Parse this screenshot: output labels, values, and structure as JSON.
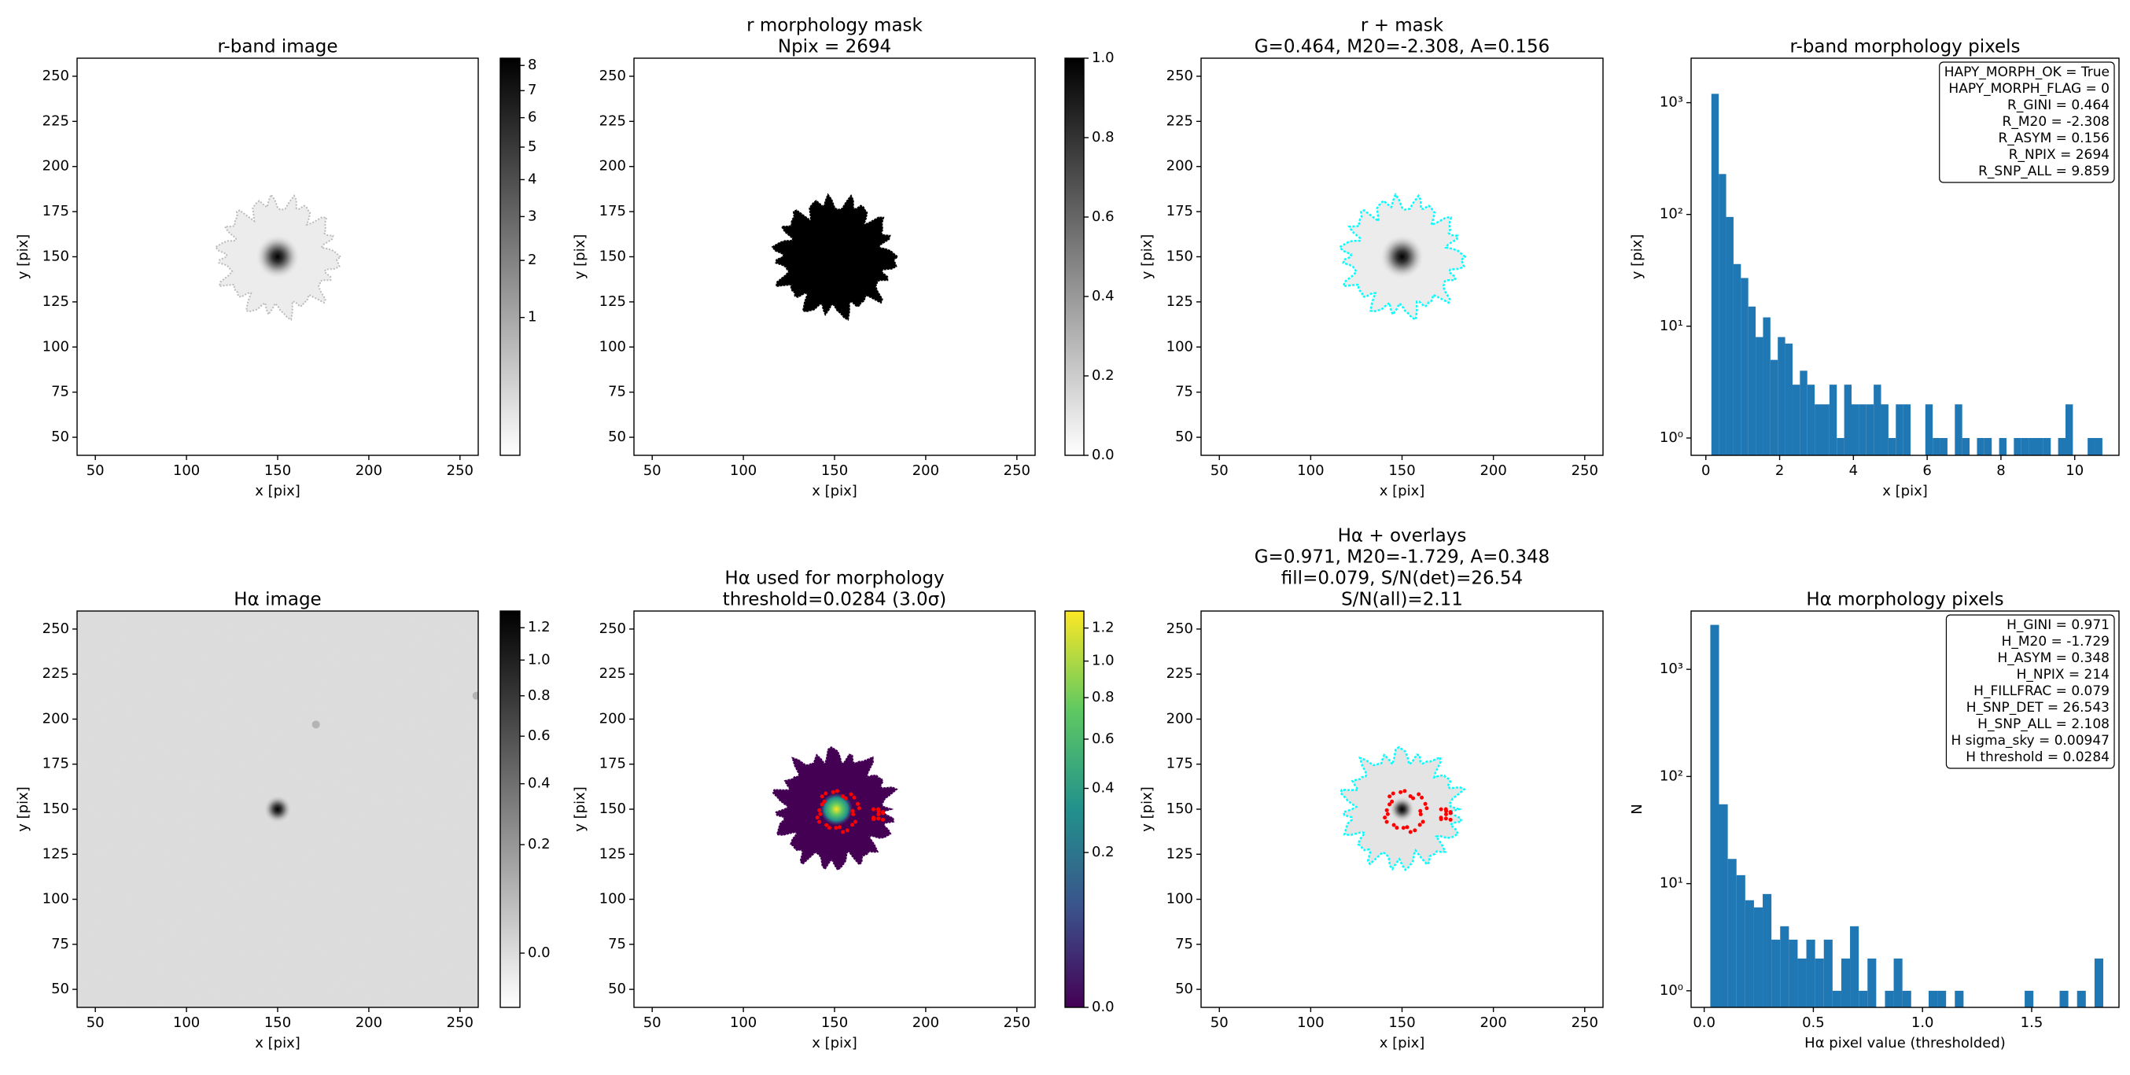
{
  "chart_data": [
    {
      "type": "image",
      "title": [
        "r-band image"
      ],
      "xlabel": "x [pix]",
      "ylabel": "y [pix]",
      "xlim": [
        40,
        260
      ],
      "ylim": [
        40,
        260
      ],
      "xticks": [
        50,
        100,
        150,
        200,
        250
      ],
      "yticks": [
        50,
        75,
        100,
        125,
        150,
        175,
        200,
        225,
        250
      ],
      "colorbar": {
        "colormap": "gray_r",
        "scale": "sqrt",
        "lim": [
          0,
          8.3
        ],
        "ticks": [
          1,
          2,
          3,
          4,
          5,
          6,
          7,
          8
        ]
      }
    },
    {
      "type": "image",
      "title": [
        "r morphology mask",
        "Npix = 2694"
      ],
      "xlabel": "x [pix]",
      "ylabel": "y [pix]",
      "xlim": [
        40,
        260
      ],
      "ylim": [
        40,
        260
      ],
      "xticks": [
        50,
        100,
        150,
        200,
        250
      ],
      "yticks": [
        50,
        75,
        100,
        125,
        150,
        175,
        200,
        225,
        250
      ],
      "colorbar": {
        "colormap": "gray_r",
        "scale": "linear",
        "lim": [
          0,
          1
        ],
        "ticks": [
          {
            "value": 0,
            "label": "0.0"
          },
          0.2,
          0.4,
          0.6,
          0.8,
          {
            "value": 1,
            "label": "1.0"
          }
        ]
      }
    },
    {
      "type": "image",
      "title": [
        "r + mask",
        "G=0.464, M20=-2.308, A=0.156"
      ],
      "xlabel": "x [pix]",
      "ylabel": "y [pix]",
      "xlim": [
        40,
        260
      ],
      "ylim": [
        40,
        260
      ],
      "xticks": [
        50,
        100,
        150,
        200,
        250
      ],
      "yticks": [
        50,
        75,
        100,
        125,
        150,
        175,
        200,
        225,
        250
      ]
    },
    {
      "type": "histogram",
      "title": [
        "r-band morphology pixels"
      ],
      "xlabel": "x [pix]",
      "ylabel": "y [pix]",
      "color": "#1f77b4",
      "log_y": true,
      "xlim": [
        -0.4,
        11.2
      ],
      "ylim": [
        0.7,
        2500
      ],
      "xticks": [
        0,
        2,
        4,
        6,
        8,
        10
      ],
      "yticks": [
        {
          "value": 1,
          "label": "10⁰"
        },
        {
          "value": 10,
          "label": "10¹"
        },
        {
          "value": 100,
          "label": "10²"
        },
        {
          "value": 1000,
          "label": "10³"
        }
      ],
      "bins": [
        0.15,
        0.35,
        0.55,
        0.75,
        0.95,
        1.15,
        1.35,
        1.55,
        1.75,
        1.95,
        2.15,
        2.35,
        2.55,
        2.75,
        2.95,
        3.15,
        3.35,
        3.55,
        3.75,
        3.95,
        4.15,
        4.35,
        4.55,
        4.75,
        4.95,
        5.15,
        5.35,
        5.55,
        5.75,
        5.95,
        6.15,
        6.35,
        6.55,
        6.75,
        6.95,
        7.15,
        7.35,
        7.55,
        7.75,
        7.95,
        8.15,
        8.35,
        8.55,
        8.75,
        8.95,
        9.15,
        9.35,
        9.55,
        9.75,
        9.95,
        10.15,
        10.35,
        10.55,
        10.75
      ],
      "values": [
        1200,
        230,
        95,
        36,
        27,
        15,
        8,
        12,
        5,
        8,
        7,
        3,
        4,
        3,
        2,
        2,
        3,
        1,
        3,
        2,
        2,
        2,
        3,
        2,
        1,
        2,
        2,
        0,
        0,
        2,
        1,
        1,
        0,
        2,
        1,
        0,
        1,
        1,
        0,
        1,
        0,
        1,
        1,
        1,
        1,
        1,
        0,
        1,
        2,
        0,
        0,
        1,
        1
      ],
      "annotation": [
        "HAPY_MORPH_OK = True",
        "HAPY_MORPH_FLAG = 0",
        "R_GINI = 0.464",
        "R_M20 = -2.308",
        "R_ASYM = 0.156",
        "R_NPIX = 2694",
        "R_SNP_ALL = 9.859"
      ]
    },
    {
      "type": "image",
      "title": [
        "Hα image"
      ],
      "xlabel": "x [pix]",
      "ylabel": "y [pix]",
      "xlim": [
        40,
        260
      ],
      "ylim": [
        40,
        260
      ],
      "xticks": [
        50,
        100,
        150,
        200,
        250
      ],
      "yticks": [
        50,
        75,
        100,
        125,
        150,
        175,
        200,
        225,
        250
      ],
      "colorbar": {
        "colormap": "gray_r",
        "scale": "sqrt",
        "lim": [
          -0.025,
          1.31
        ],
        "ticks": [
          {
            "value": 0,
            "label": "0.0"
          },
          0.2,
          0.4,
          0.6,
          0.8,
          {
            "value": 1,
            "label": "1.0"
          },
          1.2
        ]
      }
    },
    {
      "type": "image",
      "title": [
        "Hα used for morphology",
        "threshold=0.0284 (3.0σ)"
      ],
      "xlabel": "x [pix]",
      "ylabel": "y [pix]",
      "xlim": [
        40,
        260
      ],
      "ylim": [
        40,
        260
      ],
      "xticks": [
        50,
        100,
        150,
        200,
        250
      ],
      "yticks": [
        50,
        75,
        100,
        125,
        150,
        175,
        200,
        225,
        250
      ],
      "colorbar": {
        "colormap": "viridis",
        "scale": "sqrt",
        "lim": [
          0,
          1.31
        ],
        "ticks": [
          {
            "value": 0,
            "label": "0.0"
          },
          0.2,
          0.4,
          0.6,
          0.8,
          {
            "value": 1,
            "label": "1.0"
          },
          1.2
        ]
      }
    },
    {
      "type": "image",
      "title": [
        "Hα + overlays",
        "G=0.971, M20=-1.729, A=0.348",
        "fill=0.079, S/N(det)=26.54",
        "S/N(all)=2.11"
      ],
      "xlabel": "x [pix]",
      "ylabel": "y [pix]",
      "xlim": [
        40,
        260
      ],
      "ylim": [
        40,
        260
      ],
      "xticks": [
        50,
        100,
        150,
        200,
        250
      ],
      "yticks": [
        50,
        75,
        100,
        125,
        150,
        175,
        200,
        225,
        250
      ]
    },
    {
      "type": "histogram",
      "title": [
        "Hα morphology pixels"
      ],
      "xlabel": "Hα pixel value (thresholded)",
      "ylabel": "N",
      "color": "#1f77b4",
      "log_y": true,
      "xlim": [
        -0.06,
        1.9
      ],
      "ylim": [
        0.7,
        3500
      ],
      "xticks": [
        {
          "value": 0,
          "label": "0.0"
        },
        0.5,
        {
          "value": 1,
          "label": "1.0"
        },
        1.5
      ],
      "yticks": [
        {
          "value": 1,
          "label": "10⁰"
        },
        {
          "value": 10,
          "label": "10¹"
        },
        {
          "value": 100,
          "label": "10²"
        },
        {
          "value": 1000,
          "label": "10³"
        }
      ],
      "bins": [
        0.028,
        0.068,
        0.108,
        0.148,
        0.188,
        0.228,
        0.268,
        0.308,
        0.348,
        0.388,
        0.428,
        0.468,
        0.508,
        0.548,
        0.588,
        0.628,
        0.668,
        0.708,
        0.748,
        0.788,
        0.828,
        0.868,
        0.908,
        0.948,
        0.988,
        1.028,
        1.068,
        1.108,
        1.148,
        1.188,
        1.228,
        1.268,
        1.308,
        1.348,
        1.388,
        1.428,
        1.468,
        1.508,
        1.548,
        1.588,
        1.628,
        1.668,
        1.708,
        1.748,
        1.788,
        1.828
      ],
      "values": [
        2600,
        55,
        17,
        12,
        7,
        6,
        8,
        3,
        4,
        3,
        2,
        3,
        2,
        3,
        1,
        2,
        4,
        1,
        2,
        0,
        1,
        2,
        1,
        0,
        0,
        1,
        1,
        0,
        1,
        0,
        0,
        0,
        0,
        0,
        0,
        0,
        1,
        0,
        0,
        0,
        1,
        0,
        1,
        0,
        2
      ],
      "annotation": [
        "H_GINI = 0.971",
        "H_M20 = -1.729",
        "H_ASYM = 0.348",
        "H_NPIX = 214",
        "H_FILLFRAC = 0.079",
        "H_SNP_DET = 26.543",
        "H_SNP_ALL = 2.108",
        "H sigma_sky = 0.00947",
        "H threshold = 0.0284"
      ]
    }
  ]
}
